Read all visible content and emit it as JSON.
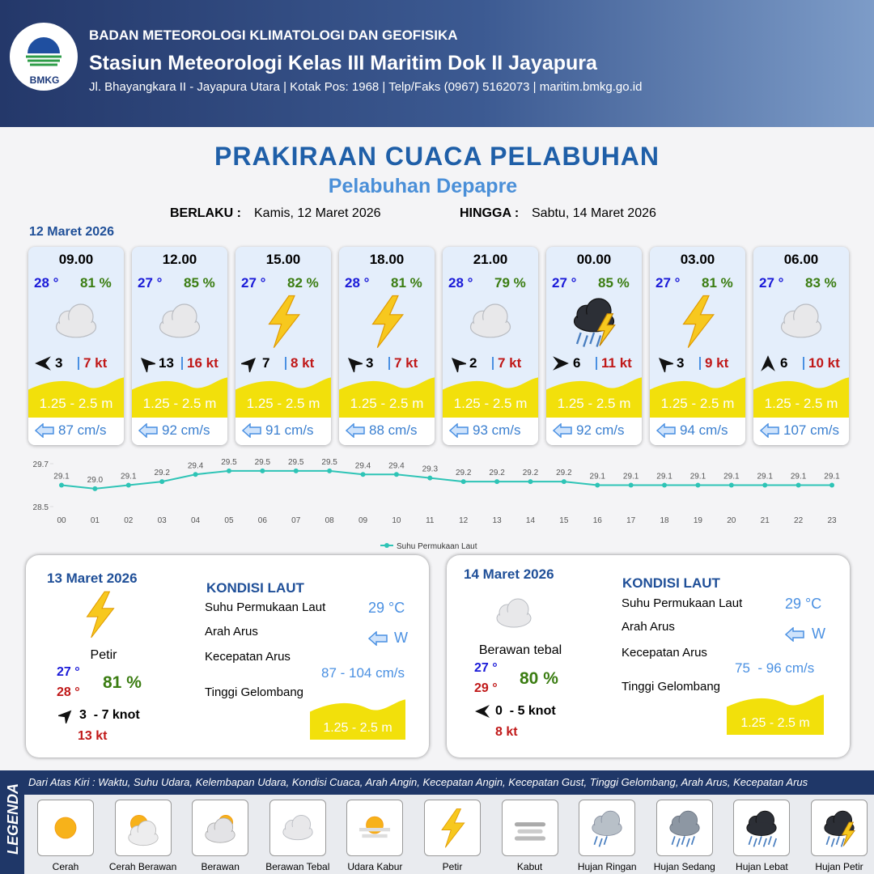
{
  "header": {
    "logo_text": "BMKG",
    "org": "BADAN METEOROLOGI KLIMATOLOGI DAN GEOFISIKA",
    "station": "Stasiun Meteorologi Kelas III Maritim Dok II Jayapura",
    "address": "Jl. Bhayangkara II - Jayapura Utara | Kotak Pos: 1968 | Telp/Faks (0967) 5162073 | maritim.bmkg.go.id"
  },
  "title": "PRAKIRAAN CUACA PELABUHAN",
  "subtitle": "Pelabuhan Depapre",
  "validity": {
    "from_label": "BERLAKU :",
    "from": "Kamis, 12 Maret 2026",
    "to_label": "HINGGA :",
    "to": "Sabtu, 14 Maret 2026"
  },
  "day1_date": "12 Maret 2026",
  "forecasts": [
    {
      "time": "09.00",
      "temp": "28 °",
      "humidity": "81 %",
      "icon": "cloud",
      "wind_dir": "W",
      "wind": "3",
      "gust": "7 kt",
      "wave": "1.25 - 2.5 m",
      "current": "87 cm/s"
    },
    {
      "time": "12.00",
      "temp": "27 °",
      "humidity": "85 %",
      "icon": "cloud",
      "wind_dir": "NW",
      "wind": "13",
      "gust": "16 kt",
      "wave": "1.25 - 2.5 m",
      "current": "92 cm/s"
    },
    {
      "time": "15.00",
      "temp": "27 °",
      "humidity": "82 %",
      "icon": "bolt",
      "wind_dir": "NE",
      "wind": "7",
      "gust": "8 kt",
      "wave": "1.25 - 2.5 m",
      "current": "91 cm/s"
    },
    {
      "time": "18.00",
      "temp": "28 °",
      "humidity": "81 %",
      "icon": "bolt",
      "wind_dir": "NW",
      "wind": "3",
      "gust": "7 kt",
      "wave": "1.25 - 2.5 m",
      "current": "88 cm/s"
    },
    {
      "time": "21.00",
      "temp": "28 °",
      "humidity": "79 %",
      "icon": "cloud",
      "wind_dir": "NW",
      "wind": "2",
      "gust": "7 kt",
      "wave": "1.25 - 2.5 m",
      "current": "93 cm/s"
    },
    {
      "time": "00.00",
      "temp": "27 °",
      "humidity": "85 %",
      "icon": "storm",
      "wind_dir": "E",
      "wind": "6",
      "gust": "11 kt",
      "wave": "1.25 - 2.5 m",
      "current": "92 cm/s"
    },
    {
      "time": "03.00",
      "temp": "27 °",
      "humidity": "81 %",
      "icon": "bolt",
      "wind_dir": "NW",
      "wind": "3",
      "gust": "9 kt",
      "wave": "1.25 - 2.5 m",
      "current": "94 cm/s"
    },
    {
      "time": "06.00",
      "temp": "27 °",
      "humidity": "83 %",
      "icon": "cloud",
      "wind_dir": "N",
      "wind": "6",
      "gust": "10 kt",
      "wave": "1.25 - 2.5 m",
      "current": "107 cm/s"
    }
  ],
  "chart_data": {
    "type": "line",
    "categories": [
      "00",
      "01",
      "02",
      "03",
      "04",
      "05",
      "06",
      "07",
      "08",
      "09",
      "10",
      "11",
      "12",
      "13",
      "14",
      "15",
      "16",
      "17",
      "18",
      "19",
      "20",
      "21",
      "22",
      "23"
    ],
    "series": [
      {
        "name": "Suhu Permukaan Laut",
        "color": "#2ec4b6",
        "values": [
          29.1,
          29.0,
          29.1,
          29.2,
          29.4,
          29.5,
          29.5,
          29.5,
          29.5,
          29.4,
          29.4,
          29.3,
          29.2,
          29.2,
          29.2,
          29.2,
          29.1,
          29.1,
          29.1,
          29.1,
          29.1,
          29.1,
          29.1,
          29.1
        ],
        "value_labels": [
          "29.1",
          "29.0",
          "29.1",
          "29.2",
          "29.4",
          "29.5",
          "29.5",
          "29.5",
          "29.5",
          "29.4",
          "29.4",
          "29.3",
          "29.2",
          "29.2",
          "29.2",
          "29.2",
          "29.1",
          "29.1",
          "29.1",
          "29.1",
          "29.1",
          "29.1",
          "29.1",
          "29.1"
        ]
      }
    ],
    "ylim": [
      28.5,
      29.7
    ],
    "yticks": [
      28.5,
      29.7
    ]
  },
  "days": [
    {
      "date": "13 Maret 2026",
      "icon": "bolt",
      "weather": "Petir",
      "tmin": "27 °",
      "tmax": "28 °",
      "humidity": "81 %",
      "wind_dir": "NE",
      "wind": "3  - 7 knot",
      "gust": "13 kt",
      "sea_title": "KONDISI LAUT",
      "sst_label": "Suhu Permukaan Laut",
      "sst": "29 °C",
      "dir_label": "Arah Arus",
      "dir": "W",
      "speed_label": "Kecepatan Arus",
      "speed": "87 - 104 cm/s",
      "wave_label": "Tinggi Gelombang",
      "wave": "1.25 - 2.5 m"
    },
    {
      "date": "14 Maret 2026",
      "icon": "cloud",
      "weather": "Berawan tebal",
      "tmin": "27 °",
      "tmax": "29 °",
      "humidity": "80 %",
      "wind_dir": "W",
      "wind": "0  - 5 knot",
      "gust": "8 kt",
      "sea_title": "KONDISI LAUT",
      "sst_label": "Suhu Permukaan Laut",
      "sst": "29 °C",
      "dir_label": "Arah Arus",
      "dir": "W",
      "speed_label": "Kecepatan Arus",
      "speed": "75  - 96 cm/s",
      "wave_label": "Tinggi Gelombang",
      "wave": "1.25 - 2.5 m"
    }
  ],
  "legend": {
    "title": "LEGENDA",
    "description": "Dari Atas Kiri : Waktu, Suhu Udara, Kelembapan Udara, Kondisi Cuaca, Arah Angin, Kecepatan Angin, Kecepatan Gust, Tinggi Gelombang, Arah Arus, Kecepatan Arus",
    "items": [
      {
        "label": "Cerah",
        "icon": "sun"
      },
      {
        "label": "Cerah Berawan",
        "icon": "suncloud"
      },
      {
        "label": "Berawan",
        "icon": "partly"
      },
      {
        "label": "Berawan Tebal",
        "icon": "cloud"
      },
      {
        "label": "Udara Kabur",
        "icon": "haze"
      },
      {
        "label": "Petir",
        "icon": "bolt"
      },
      {
        "label": "Kabut",
        "icon": "fog"
      },
      {
        "label": "Hujan Ringan",
        "icon": "rain-light"
      },
      {
        "label": "Hujan Sedang",
        "icon": "rain-medium"
      },
      {
        "label": "Hujan Lebat",
        "icon": "rain-heavy"
      },
      {
        "label": "Hujan Petir",
        "icon": "storm"
      }
    ]
  }
}
